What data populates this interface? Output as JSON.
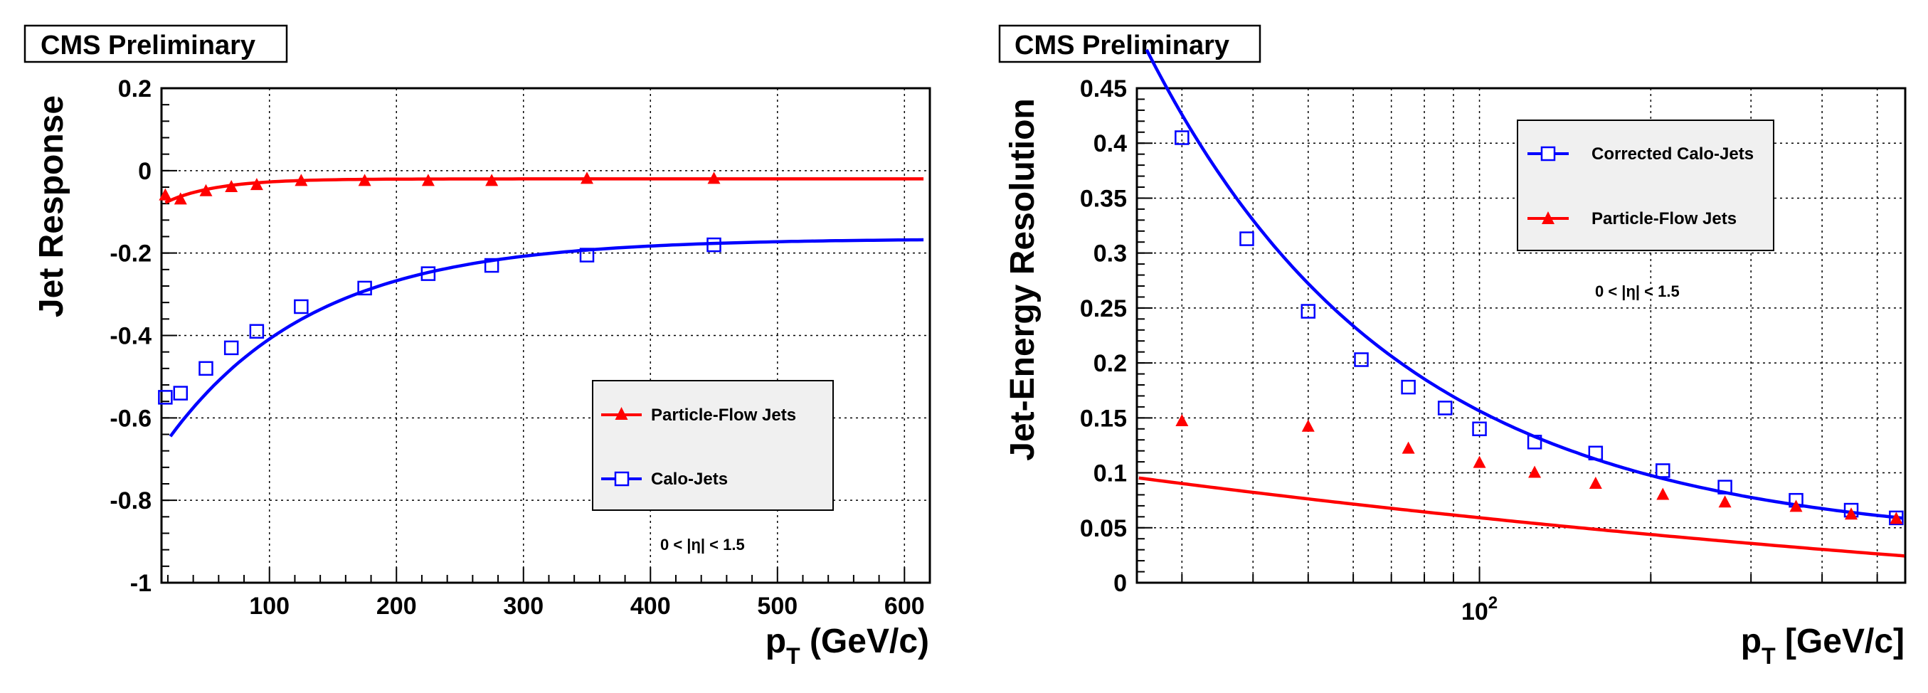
{
  "chart_data": [
    {
      "type": "scatter",
      "banner": "CMS Preliminary",
      "ylabel": "Jet Response",
      "xlabel": {
        "main": "p",
        "sub": "T",
        "unit": " (GeV/c)"
      },
      "xlim": [
        15,
        620
      ],
      "ylim": [
        -1,
        0.2
      ],
      "x_ticks": [
        100,
        200,
        300,
        400,
        500,
        600
      ],
      "x_tick_labels": [
        "100",
        "200",
        "300",
        "400",
        "500",
        "600"
      ],
      "y_ticks": [
        0.2,
        0,
        -0.2,
        -0.4,
        -0.6,
        -0.8,
        -1
      ],
      "y_tick_labels": [
        "0.2",
        "0",
        "-0.2",
        "-0.4",
        "-0.6",
        "-0.8",
        "-1"
      ],
      "grid": true,
      "annotation": "0 < |η| < 1.5",
      "legend": [
        "Particle-Flow Jets",
        "Calo-Jets"
      ],
      "series": [
        {
          "name": "Particle-Flow Jets",
          "color": "#ff0000",
          "marker": "triangle",
          "x": [
            18,
            30,
            50,
            70,
            90,
            125,
            175,
            225,
            275,
            350,
            450
          ],
          "y": [
            -0.06,
            -0.07,
            -0.05,
            -0.04,
            -0.035,
            -0.025,
            -0.025,
            -0.025,
            -0.025,
            -0.02,
            -0.02
          ]
        },
        {
          "name": "Calo-Jets",
          "color": "#0000ff",
          "marker": "open-square",
          "x": [
            18,
            30,
            50,
            70,
            90,
            125,
            175,
            225,
            275,
            350,
            450
          ],
          "y": [
            -0.55,
            -0.54,
            -0.48,
            -0.43,
            -0.39,
            -0.33,
            -0.285,
            -0.25,
            -0.23,
            -0.205,
            -0.18
          ]
        }
      ]
    },
    {
      "type": "scatter",
      "banner": "CMS Preliminary",
      "ylabel": "Jet-Energy Resolution",
      "xlabel": {
        "main": "p",
        "sub": "T",
        "unit": " [GeV/c]"
      },
      "xscale": "log",
      "xlim": [
        25,
        560
      ],
      "ylim": [
        0,
        0.45
      ],
      "x_tick_label": {
        "base": "10",
        "exp": "2"
      },
      "y_ticks": [
        0.45,
        0.4,
        0.35,
        0.3,
        0.25,
        0.2,
        0.15,
        0.1,
        0.05,
        0
      ],
      "y_tick_labels": [
        "0.45",
        "0.4",
        "0.35",
        "0.3",
        "0.25",
        "0.2",
        "0.15",
        "0.1",
        "0.05",
        "0"
      ],
      "grid": true,
      "annotation": "0 < |η| < 1.5",
      "legend": [
        "Corrected Calo-Jets",
        "Particle-Flow Jets"
      ],
      "series": [
        {
          "name": "Corrected Calo-Jets",
          "color": "#0000ff",
          "marker": "open-square",
          "x": [
            30,
            39,
            50,
            62,
            75,
            87,
            100,
            125,
            160,
            210,
            270,
            360,
            450,
            540
          ],
          "y": [
            0.405,
            0.313,
            0.247,
            0.203,
            0.178,
            0.159,
            0.14,
            0.128,
            0.118,
            0.102,
            0.087,
            0.075,
            0.066,
            0.059
          ]
        },
        {
          "name": "Particle-Flow Jets",
          "color": "#ff0000",
          "marker": "triangle",
          "x": [
            30,
            50,
            75,
            100,
            125,
            160,
            210,
            270,
            360,
            450,
            540
          ],
          "y": [
            0.147,
            0.142,
            0.122,
            0.109,
            0.1,
            0.09,
            0.08,
            0.073,
            0.069,
            0.062,
            0.058
          ]
        }
      ]
    }
  ]
}
